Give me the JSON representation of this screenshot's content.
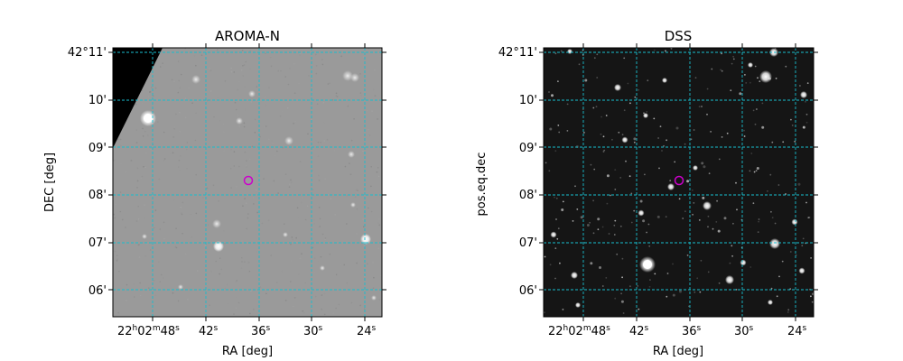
{
  "panels": [
    {
      "title": "AROMA-N",
      "xlabel": "RA [deg]",
      "ylabel": "DEC [deg]",
      "ra_ticks": [
        {
          "h": "22",
          "m": "02",
          "s": "48",
          "full": true
        },
        {
          "s": "42"
        },
        {
          "s": "36"
        },
        {
          "s": "30"
        },
        {
          "s": "24"
        }
      ],
      "dec_ticks": [
        "42°11'",
        "10'",
        "09'",
        "08'",
        "07'",
        "06'"
      ],
      "marker_color": "#cc00cc",
      "grid_color": "#17becf",
      "image_style": "gray"
    },
    {
      "title": "DSS",
      "xlabel": "RA [deg]",
      "ylabel": "pos.eq.dec",
      "ra_ticks": [
        {
          "h": "22",
          "m": "02",
          "s": "48",
          "full": true
        },
        {
          "s": "42"
        },
        {
          "s": "36"
        },
        {
          "s": "30"
        },
        {
          "s": "24"
        }
      ],
      "dec_ticks": [
        "42°11'",
        "10'",
        "09'",
        "08'",
        "07'",
        "06'"
      ],
      "marker_color": "#cc00cc",
      "grid_color": "#17becf",
      "image_style": "dark"
    }
  ]
}
